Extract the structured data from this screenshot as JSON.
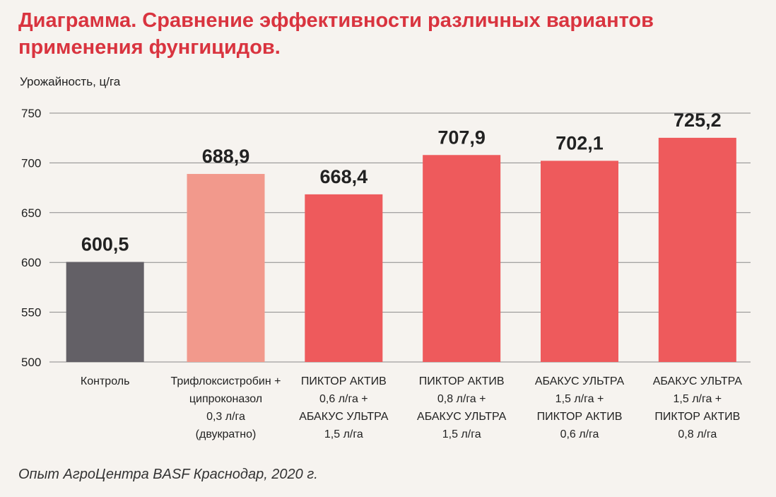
{
  "chart_data": {
    "type": "bar",
    "title": "Диаграмма. Сравнение эффективности различных вариантов применения фунгицидов.",
    "ylabel": "Урожайность, ц/га",
    "ylim": [
      500,
      750
    ],
    "yticks": [
      500,
      550,
      600,
      650,
      700,
      750
    ],
    "grid": true,
    "categories": [
      [
        "Контроль"
      ],
      [
        "Трифлоксистробин +",
        "ципроконазол",
        "0,3 л/га",
        "(двукратно)"
      ],
      [
        "ПИКТОР АКТИВ",
        "0,6 л/га +",
        "АБАКУС УЛЬТРА",
        "1,5 л/га"
      ],
      [
        "ПИКТОР АКТИВ",
        "0,8 л/га +",
        "АБАКУС УЛЬТРА",
        "1,5 л/га"
      ],
      [
        "АБАКУС УЛЬТРА",
        "1,5 л/га +",
        "ПИКТОР АКТИВ",
        "0,6 л/га"
      ],
      [
        "АБАКУС УЛЬТРА",
        "1,5 л/га +",
        "ПИКТОР АКТИВ",
        "0,8 л/га"
      ]
    ],
    "values": [
      600.5,
      688.9,
      668.4,
      707.9,
      702.1,
      725.2
    ],
    "value_labels": [
      "600,5",
      "688,9",
      "668,4",
      "707,9",
      "702,1",
      "725,2"
    ],
    "colors": [
      "#636066",
      "#f2998c",
      "#ee5a5c",
      "#ee5a5c",
      "#ee5a5c",
      "#ee5a5c"
    ]
  },
  "source": "Опыт АгроЦентра BASF Краснодар, 2020 г."
}
